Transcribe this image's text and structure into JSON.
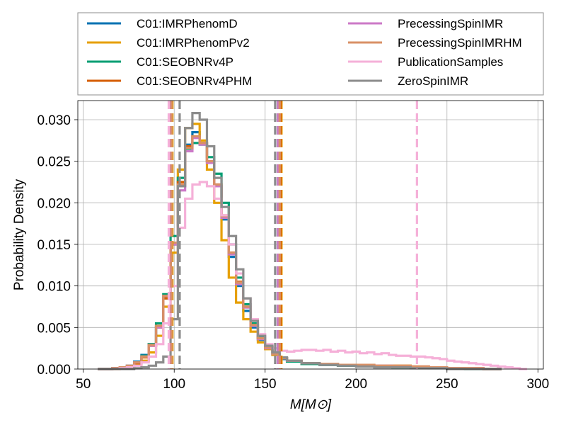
{
  "chart_data": {
    "type": "histogram",
    "xlabel": "M[M⊙]",
    "ylabel": "Probability Density",
    "xlim": [
      47,
      303
    ],
    "ylim": [
      0,
      0.0323
    ],
    "xticks": [
      50,
      100,
      150,
      200,
      250,
      300
    ],
    "yticks": [
      0.0,
      0.005,
      0.01,
      0.015,
      0.02,
      0.025,
      0.03
    ],
    "ytick_labels": [
      "0.000",
      "0.005",
      "0.010",
      "0.015",
      "0.020",
      "0.025",
      "0.030"
    ],
    "grid": true,
    "legend_location": "above plot, two columns",
    "series": [
      {
        "name": "C01:IMRPhenomD",
        "color": "#0072b2",
        "x": [
          58,
          62,
          66,
          70,
          74,
          78,
          82,
          86,
          90,
          94,
          98,
          102,
          106,
          110,
          114,
          118,
          122,
          126,
          130,
          134,
          138,
          142,
          146,
          150,
          154,
          158,
          162,
          170,
          180,
          190,
          200,
          210,
          220,
          230,
          240,
          250,
          260,
          270
        ],
        "y": [
          0.0,
          0.0,
          0.0001,
          0.0002,
          0.0004,
          0.0009,
          0.0017,
          0.003,
          0.005,
          0.0085,
          0.015,
          0.022,
          0.027,
          0.0285,
          0.0272,
          0.025,
          0.022,
          0.018,
          0.0135,
          0.01,
          0.007,
          0.005,
          0.0035,
          0.0025,
          0.0017,
          0.0012,
          0.0009,
          0.0006,
          0.0005,
          0.0004,
          0.0004,
          0.0003,
          0.0003,
          0.0002,
          0.0002,
          0.0001,
          0.0001,
          0.0
        ],
        "median_lines": [
          98.5,
          157.5
        ]
      },
      {
        "name": "C01:IMRPhenomPv2",
        "color": "#e69f00",
        "x": [
          58,
          62,
          66,
          70,
          74,
          78,
          82,
          86,
          90,
          94,
          98,
          102,
          106,
          110,
          114,
          118,
          122,
          126,
          130,
          134,
          138,
          142,
          146,
          150,
          154,
          158,
          162,
          170,
          180,
          190,
          200,
          210,
          220,
          230,
          240,
          250,
          260,
          270
        ],
        "y": [
          0.0,
          0.0,
          0.0,
          0.0001,
          0.0002,
          0.0005,
          0.001,
          0.002,
          0.004,
          0.0075,
          0.014,
          0.024,
          0.029,
          0.0295,
          0.0275,
          0.024,
          0.02,
          0.0155,
          0.011,
          0.008,
          0.006,
          0.0045,
          0.0032,
          0.0024,
          0.0017,
          0.0013,
          0.001,
          0.0007,
          0.0006,
          0.0005,
          0.0005,
          0.0004,
          0.0004,
          0.0003,
          0.0002,
          0.0001,
          0.0001,
          0.0
        ],
        "median_lines": [
          99.0,
          159.0
        ]
      },
      {
        "name": "C01:SEOBNRv4P",
        "color": "#009e73",
        "x": [
          58,
          62,
          66,
          70,
          74,
          78,
          82,
          86,
          90,
          94,
          98,
          102,
          106,
          110,
          114,
          118,
          122,
          126,
          130,
          134,
          138,
          142,
          146,
          150,
          154,
          158,
          162,
          170,
          180,
          190,
          200,
          210,
          220,
          230,
          240,
          250,
          260,
          270
        ],
        "y": [
          0.0,
          0.0,
          0.0001,
          0.0002,
          0.0004,
          0.0008,
          0.0016,
          0.003,
          0.0055,
          0.009,
          0.016,
          0.023,
          0.0265,
          0.0272,
          0.027,
          0.0255,
          0.0235,
          0.02,
          0.015,
          0.011,
          0.0078,
          0.0055,
          0.0038,
          0.0026,
          0.0018,
          0.0013,
          0.0009,
          0.0006,
          0.0005,
          0.0004,
          0.0004,
          0.0003,
          0.0002,
          0.0002,
          0.0001,
          0.0001,
          0.0,
          0.0
        ],
        "median_lines": [
          98.0,
          157.0
        ]
      },
      {
        "name": "C01:SEOBNRv4PHM",
        "color": "#d55e00",
        "x": [
          58,
          62,
          66,
          70,
          74,
          78,
          82,
          86,
          90,
          94,
          98,
          102,
          106,
          110,
          114,
          118,
          122,
          126,
          130,
          134,
          138,
          142,
          146,
          150,
          154,
          158,
          162,
          170,
          180,
          190,
          200,
          210,
          220,
          230,
          240,
          250,
          260,
          270
        ],
        "y": [
          0.0,
          0.0,
          0.0001,
          0.0002,
          0.0003,
          0.0007,
          0.0014,
          0.0028,
          0.005,
          0.0085,
          0.015,
          0.0225,
          0.0268,
          0.028,
          0.0272,
          0.025,
          0.0222,
          0.0185,
          0.014,
          0.0105,
          0.0075,
          0.0053,
          0.0037,
          0.0026,
          0.0018,
          0.0013,
          0.001,
          0.0007,
          0.0006,
          0.0005,
          0.0005,
          0.0004,
          0.0004,
          0.0003,
          0.0002,
          0.0001,
          0.0001,
          0.0
        ],
        "median_lines": [
          98.5,
          158.5
        ]
      },
      {
        "name": "PrecessingSpinIMR",
        "color": "#cc79c7",
        "x": [
          58,
          62,
          66,
          70,
          74,
          78,
          82,
          86,
          90,
          94,
          98,
          102,
          106,
          110,
          114,
          118,
          122,
          126,
          130,
          134,
          138,
          142,
          146,
          150,
          154,
          158,
          162,
          170,
          180,
          190,
          200,
          210,
          220,
          230,
          240,
          250,
          260,
          270
        ],
        "y": [
          0.0,
          0.0,
          0.0001,
          0.0002,
          0.0004,
          0.0008,
          0.0015,
          0.0028,
          0.005,
          0.0088,
          0.015,
          0.0215,
          0.0262,
          0.0278,
          0.027,
          0.0248,
          0.022,
          0.0182,
          0.0138,
          0.0102,
          0.0074,
          0.0052,
          0.0036,
          0.0025,
          0.0018,
          0.0013,
          0.001,
          0.0007,
          0.0006,
          0.0005,
          0.0004,
          0.0004,
          0.0003,
          0.0003,
          0.0002,
          0.0001,
          0.0001,
          0.0
        ],
        "median_lines": [
          98.0,
          157.0
        ]
      },
      {
        "name": "PrecessingSpinIMRHM",
        "color": "#d99066",
        "x": [
          58,
          62,
          66,
          70,
          74,
          78,
          82,
          86,
          90,
          94,
          98,
          102,
          106,
          110,
          114,
          118,
          122,
          126,
          130,
          134,
          138,
          142,
          146,
          150,
          154,
          158,
          162,
          170,
          180,
          190,
          200,
          210,
          220,
          230,
          240,
          250,
          260,
          270
        ],
        "y": [
          0.0,
          0.0,
          0.0001,
          0.0002,
          0.0004,
          0.0008,
          0.0015,
          0.0029,
          0.0052,
          0.0088,
          0.0152,
          0.0222,
          0.0266,
          0.028,
          0.0272,
          0.025,
          0.0222,
          0.0184,
          0.014,
          0.0104,
          0.0075,
          0.0053,
          0.0037,
          0.0026,
          0.0018,
          0.0013,
          0.001,
          0.0007,
          0.0006,
          0.0005,
          0.0005,
          0.0004,
          0.0004,
          0.0003,
          0.0002,
          0.0001,
          0.0001,
          0.0
        ],
        "median_lines": [
          98.5,
          158.0
        ]
      },
      {
        "name": "PublicationSamples",
        "color": "#f5b0d8",
        "x": [
          58,
          62,
          66,
          70,
          74,
          78,
          82,
          86,
          90,
          94,
          98,
          102,
          106,
          110,
          114,
          118,
          122,
          126,
          130,
          134,
          138,
          142,
          146,
          150,
          154,
          158,
          162,
          166,
          170,
          174,
          178,
          182,
          186,
          190,
          194,
          198,
          202,
          206,
          210,
          214,
          218,
          222,
          226,
          230,
          234,
          238,
          242,
          246,
          250,
          254,
          258,
          262,
          266,
          270,
          274,
          278,
          282,
          286,
          290
        ],
        "y": [
          0.0,
          0.0,
          0.0,
          0.0001,
          0.0002,
          0.0004,
          0.0008,
          0.0015,
          0.003,
          0.0055,
          0.01,
          0.017,
          0.0205,
          0.0222,
          0.0225,
          0.022,
          0.0205,
          0.0185,
          0.015,
          0.0115,
          0.0085,
          0.006,
          0.0042,
          0.003,
          0.0025,
          0.0022,
          0.0021,
          0.0022,
          0.0023,
          0.0023,
          0.0022,
          0.0023,
          0.0021,
          0.0022,
          0.002,
          0.0021,
          0.0019,
          0.002,
          0.0018,
          0.0019,
          0.0017,
          0.0016,
          0.0016,
          0.0015,
          0.0015,
          0.0014,
          0.0013,
          0.0012,
          0.001,
          0.0009,
          0.0008,
          0.0007,
          0.0006,
          0.0005,
          0.0004,
          0.0003,
          0.0002,
          0.0001,
          0.0
        ],
        "median_lines": [
          97.0,
          233.5
        ]
      },
      {
        "name": "ZeroSpinIMR",
        "color": "#8c8c8c",
        "x": [
          58,
          62,
          66,
          70,
          74,
          78,
          82,
          86,
          90,
          94,
          98,
          102,
          106,
          110,
          114,
          118,
          122,
          126,
          130,
          134,
          138,
          142,
          146,
          150,
          154,
          158,
          162,
          170,
          180,
          190,
          200,
          210,
          220,
          230,
          240,
          250,
          260,
          270
        ],
        "y": [
          0.0,
          0.0,
          0.0,
          0.0,
          0.0,
          0.0001,
          0.0002,
          0.0004,
          0.0008,
          0.0015,
          0.006,
          0.022,
          0.029,
          0.0308,
          0.03,
          0.0268,
          0.023,
          0.0195,
          0.016,
          0.012,
          0.0085,
          0.0058,
          0.004,
          0.0028,
          0.002,
          0.0014,
          0.001,
          0.0007,
          0.0005,
          0.0004,
          0.0003,
          0.0002,
          0.0002,
          0.0001,
          0.0001,
          0.0,
          0.0,
          0.0
        ],
        "median_lines": [
          103.0,
          155.5
        ]
      }
    ]
  }
}
